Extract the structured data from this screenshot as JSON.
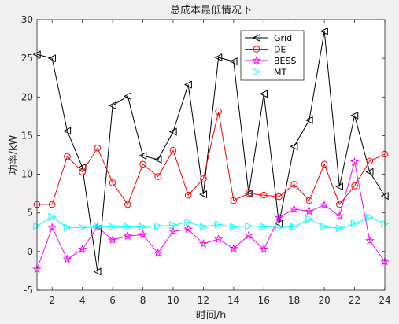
{
  "chart_data": {
    "type": "line",
    "title": "总成本最低情况下",
    "xlabel": "时间/h",
    "ylabel": "功率/kW",
    "xlim": [
      1,
      24
    ],
    "ylim": [
      -5,
      30
    ],
    "xticks": [
      2,
      4,
      6,
      8,
      10,
      12,
      14,
      16,
      18,
      20,
      22,
      24
    ],
    "yticks": [
      -5,
      0,
      5,
      10,
      15,
      20,
      25,
      30
    ],
    "grid": false,
    "legend_position": "top-right",
    "x": [
      1,
      2,
      3,
      4,
      5,
      6,
      7,
      8,
      9,
      10,
      11,
      12,
      13,
      14,
      15,
      16,
      17,
      18,
      19,
      20,
      21,
      22,
      23,
      24
    ],
    "series": [
      {
        "name": "Grid",
        "color": "#000000",
        "marker": "triangle-left",
        "values": [
          25.5,
          25.0,
          15.6,
          10.9,
          -2.6,
          18.9,
          20.1,
          12.4,
          11.9,
          15.5,
          21.6,
          7.4,
          25.1,
          24.6,
          7.5,
          20.4,
          3.6,
          13.6,
          17.0,
          28.5,
          8.4,
          17.6,
          10.3,
          7.2
        ]
      },
      {
        "name": "DE",
        "color": "#ff0000",
        "marker": "circle",
        "values": [
          6.1,
          6.1,
          12.3,
          10.3,
          13.4,
          8.9,
          6.1,
          11.3,
          9.7,
          13.1,
          7.3,
          9.4,
          18.1,
          6.6,
          7.5,
          7.3,
          7.1,
          8.7,
          6.6,
          11.3,
          6.1,
          8.5,
          11.7,
          12.6
        ]
      },
      {
        "name": "BESS",
        "color": "#ff00ff",
        "marker": "star",
        "values": [
          -2.3,
          3.1,
          -1.0,
          0.3,
          3.2,
          1.5,
          2.0,
          2.2,
          -0.2,
          2.6,
          2.9,
          1.0,
          1.6,
          0.4,
          2.1,
          0.3,
          4.4,
          5.5,
          5.2,
          6.0,
          4.6,
          11.6,
          1.4,
          -1.3
        ]
      },
      {
        "name": "MT",
        "color": "#00ffff",
        "marker": "triangle-right",
        "values": [
          3.3,
          4.5,
          3.1,
          3.1,
          3.2,
          3.2,
          3.2,
          3.2,
          3.3,
          3.4,
          3.8,
          3.2,
          3.5,
          3.2,
          3.3,
          3.2,
          3.1,
          3.2,
          4.2,
          3.2,
          3.0,
          3.6,
          4.4,
          3.6
        ]
      }
    ]
  }
}
